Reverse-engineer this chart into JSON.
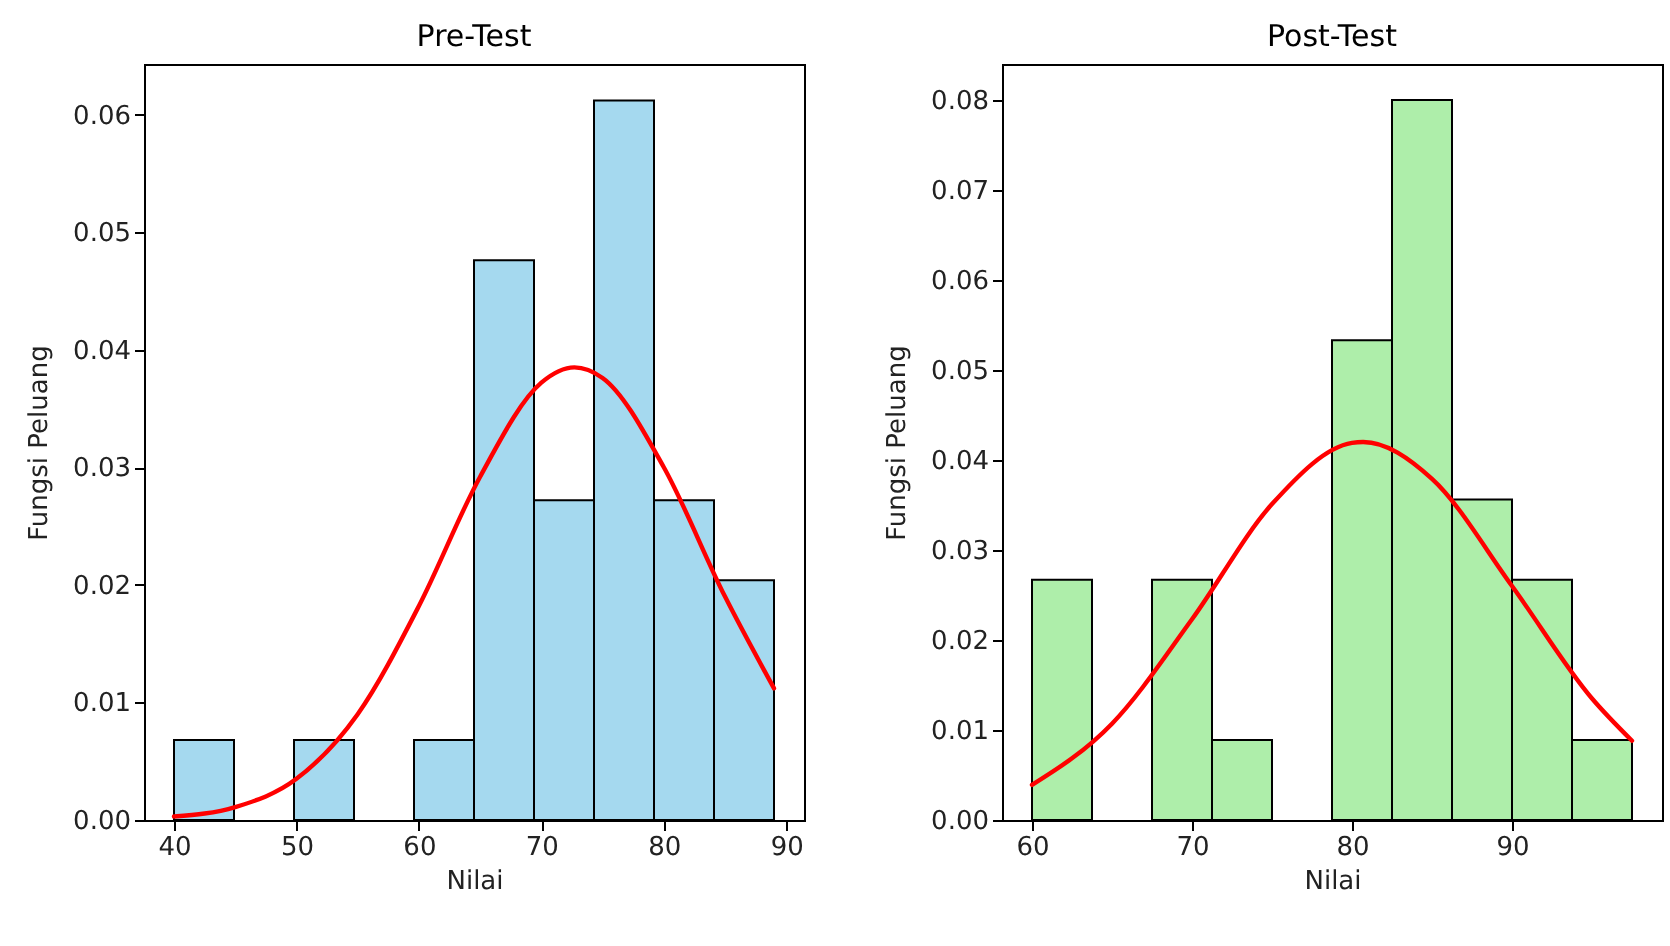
{
  "chart_data": [
    {
      "type": "histogram",
      "title": "Pre-Test",
      "xlabel": "Nilai",
      "ylabel": "Fungsi Peluang",
      "bins": [
        40,
        44.9,
        49.8,
        54.7,
        59.6,
        64.5,
        69.4,
        74.3,
        79.2,
        84.1,
        89
      ],
      "xlim": [
        37.55,
        91.45
      ],
      "xticks": [
        40,
        50,
        60,
        70,
        80,
        90
      ],
      "ylim": [
        0,
        0.0643
      ],
      "yticks": [
        {
          "value": 0,
          "label": "0.00"
        },
        0.01,
        0.02,
        0.03,
        0.04,
        0.05,
        0.06
      ],
      "grid": false,
      "series": [
        {
          "color": "#a5d9ef",
          "values": [
            0.0068,
            0,
            0.0068,
            0,
            0.0068,
            0.0476,
            0.0272,
            0.0612,
            0.0272,
            0.0204
          ]
        },
        {
          "type": "line",
          "color": "#ff0000",
          "x": [
            40,
            45,
            50,
            55,
            60,
            65,
            70,
            72.7,
            75,
            80,
            85,
            89
          ],
          "values": [
            0.0003,
            0.0011,
            0.0035,
            0.009,
            0.0182,
            0.0292,
            0.0372,
            0.0385,
            0.0376,
            0.03,
            0.019,
            0.0112
          ]
        }
      ]
    },
    {
      "type": "histogram",
      "title": "Post-Test",
      "xlabel": "Nilai",
      "ylabel": "Fungsi Peluang",
      "bins": [
        60,
        63.75,
        67.5,
        71.25,
        75,
        78.75,
        82.5,
        86.25,
        90,
        93.75,
        97.5
      ],
      "xlim": [
        58.125,
        99.375
      ],
      "xticks": [
        60,
        70,
        80,
        90
      ],
      "ylim": [
        0,
        0.084
      ],
      "yticks": [
        {
          "value": 0,
          "label": "0.00"
        },
        0.01,
        0.02,
        0.03,
        0.04,
        0.05,
        0.06,
        0.07,
        0.08
      ],
      "grid": false,
      "series": [
        {
          "color": "#aeeeaa",
          "values": [
            0.0267,
            0,
            0.0267,
            0.0089,
            0,
            0.0533,
            0.08,
            0.0356,
            0.0267,
            0.0089
          ]
        },
        {
          "type": "line",
          "color": "#ff0000",
          "x": [
            60,
            65,
            70,
            75,
            80,
            80.7,
            85,
            90,
            95,
            97.5
          ],
          "values": [
            0.0039,
            0.0107,
            0.0223,
            0.0351,
            0.0419,
            0.042,
            0.0379,
            0.026,
            0.0135,
            0.0088
          ]
        }
      ]
    }
  ]
}
